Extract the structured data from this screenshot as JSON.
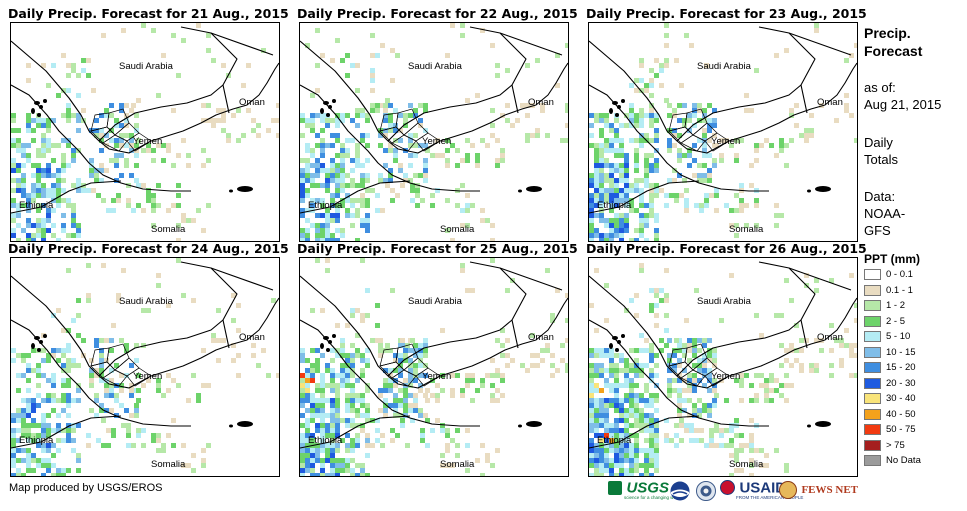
{
  "panels": [
    {
      "title": "Daily Precip. Forecast for 21 Aug., 2015",
      "intensity": 0.8
    },
    {
      "title": "Daily Precip. Forecast for 22 Aug., 2015",
      "intensity": 0.9
    },
    {
      "title": "Daily Precip. Forecast for 23 Aug., 2015",
      "intensity": 1.0
    },
    {
      "title": "Daily Precip. Forecast for 24 Aug., 2015",
      "intensity": 0.7
    },
    {
      "title": "Daily Precip. Forecast for 25 Aug., 2015",
      "intensity": 1.1
    },
    {
      "title": "Daily Precip. Forecast for 26 Aug., 2015",
      "intensity": 1.2
    }
  ],
  "map_labels": {
    "saudi_arabia": "Saudi Arabia",
    "oman": "Oman",
    "yemen": "Yemen",
    "ethiopia": "Ethiopia",
    "somalia": "Somalia"
  },
  "legend": {
    "title_line1": "Precip.",
    "title_line2": "Forecast",
    "asof_label": "as of:",
    "asof_date": "Aug 21, 2015",
    "totals_line1": "Daily",
    "totals_line2": "Totals",
    "data_label": "Data:",
    "data_source_line1": "NOAA-",
    "data_source_line2": "GFS",
    "ppt_title": "PPT (mm)",
    "classes": [
      {
        "label": "0 - 0.1",
        "color": "#ffffff"
      },
      {
        "label": "0.1 - 1",
        "color": "#e9dcc1"
      },
      {
        "label": "1 - 2",
        "color": "#b6e8a8"
      },
      {
        "label": "2 - 5",
        "color": "#6dd36a"
      },
      {
        "label": "5 - 10",
        "color": "#b4ecf4"
      },
      {
        "label": "10 - 15",
        "color": "#7fbde8"
      },
      {
        "label": "15 - 20",
        "color": "#3f8ee0"
      },
      {
        "label": "20 - 30",
        "color": "#1e5ae0"
      },
      {
        "label": "30 - 40",
        "color": "#f9e47a"
      },
      {
        "label": "40 - 50",
        "color": "#f4a21c"
      },
      {
        "label": "50 - 75",
        "color": "#f23a10"
      },
      {
        "label": "> 75",
        "color": "#a51f1f"
      },
      {
        "label": "No Data",
        "color": "#9b9b9b"
      }
    ]
  },
  "credit": "Map produced by USGS/EROS",
  "logos": {
    "usgs": "USGS",
    "usgs_tagline": "science for a changing world",
    "noaa": "NOAA",
    "usaid": "USAID",
    "usaid_tagline": "FROM THE AMERICAN PEOPLE",
    "fewsnet": "FEWS NET"
  }
}
